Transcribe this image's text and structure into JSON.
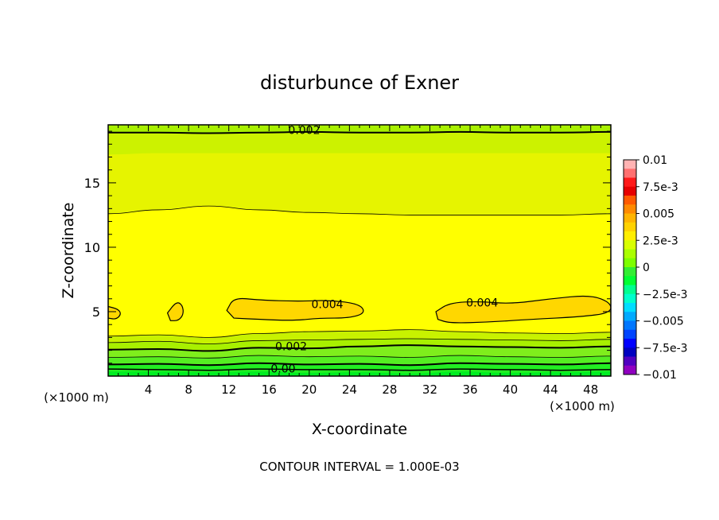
{
  "chart_data": {
    "type": "heatmap",
    "title": "disturbunce of Exner",
    "xlabel": "X-coordinate",
    "ylabel": "Z-coordinate",
    "x_unit": "(×1000 m)",
    "x_ticks": [
      4,
      8,
      12,
      16,
      20,
      24,
      28,
      32,
      36,
      40,
      44,
      48
    ],
    "y_ticks": [
      5,
      10,
      15
    ],
    "xlim": [
      0,
      50
    ],
    "ylim": [
      0,
      19.5
    ],
    "footer": "CONTOUR INTERVAL = 1.000E-03",
    "colorbar": {
      "labels": [
        "0.01",
        "7.5e-3",
        "0.005",
        "2.5e-3",
        "0",
        "−2.5e-3",
        "−0.005",
        "−7.5e-3",
        "−0.01"
      ],
      "values": [
        0.01,
        0.0075,
        0.005,
        0.0025,
        0,
        -0.0025,
        -0.005,
        -0.0075,
        -0.01
      ],
      "colors": [
        "#ffb3b3",
        "#ff7070",
        "#ff1a1a",
        "#e60000",
        "#ff5a00",
        "#ff8a00",
        "#ffb400",
        "#ffd200",
        "#ffee00",
        "#d8ff00",
        "#aaff00",
        "#7dff00",
        "#33ee33",
        "#00ff33",
        "#00ff90",
        "#00ffcc",
        "#00ddff",
        "#00aaff",
        "#0077ff",
        "#0044ff",
        "#0000ff",
        "#0000c0",
        "#5000c0",
        "#9000c0"
      ]
    },
    "contour_labels": [
      {
        "text": "0.002",
        "x": 19.5,
        "z": 19.1
      },
      {
        "text": "0.004",
        "x": 21.8,
        "z": 5.6
      },
      {
        "text": "0.004",
        "x": 37.2,
        "z": 5.7
      },
      {
        "text": "0.002",
        "x": 18.2,
        "z": 2.3
      },
      {
        "text": "0.00",
        "x": 17.4,
        "z": 0.6
      }
    ],
    "levels": [
      {
        "value": 0.0005,
        "color": "#00ee22",
        "line": false,
        "z": [
          0.35,
          0.35,
          0.3,
          0.35,
          0.25,
          0.3,
          0.2,
          0.35,
          0.25,
          0.3,
          0.35
        ]
      },
      {
        "value": 0.001,
        "color": "#22ee22",
        "line": true,
        "z": [
          0.9,
          0.95,
          0.85,
          1.0,
          0.9,
          0.95,
          0.85,
          1.0,
          0.95,
          0.9,
          1.0
        ]
      },
      {
        "value": 0.0015,
        "color": "#55ee22",
        "line": true,
        "z": [
          1.45,
          1.5,
          1.4,
          1.6,
          1.5,
          1.55,
          1.45,
          1.6,
          1.5,
          1.45,
          1.55
        ]
      },
      {
        "value": 0.002,
        "color": "#7fee1c",
        "line": true,
        "z": [
          2.05,
          2.1,
          1.95,
          2.2,
          2.15,
          2.3,
          2.4,
          2.3,
          2.25,
          2.2,
          2.3
        ]
      },
      {
        "value": 0.0025,
        "color": "#a8f000",
        "line": true,
        "z": [
          2.6,
          2.7,
          2.5,
          2.75,
          2.8,
          2.85,
          2.9,
          2.85,
          2.8,
          2.75,
          2.85
        ]
      },
      {
        "value": 0.003,
        "color": "#c8f200",
        "line": true,
        "z": [
          3.1,
          3.2,
          3.0,
          3.3,
          3.45,
          3.5,
          3.6,
          3.45,
          3.35,
          3.3,
          3.4
        ]
      },
      {
        "value": 0.0035,
        "color": "#ffff00",
        "line": false,
        "z": [
          8.8,
          7.3,
          10.0,
          9.6,
          9.3,
          9.1,
          9.0,
          9.0,
          9.0,
          9.0,
          9.0
        ]
      },
      {
        "value": 0.003,
        "color": "#e6f400",
        "line": false,
        "z": [
          12.6,
          12.9,
          13.2,
          12.9,
          12.7,
          12.6,
          12.5,
          12.5,
          12.5,
          12.5,
          12.5
        ]
      },
      {
        "value": 0.0025,
        "color": "#ccf200",
        "line": false,
        "z": [
          17.2,
          17.3,
          17.3,
          17.3,
          17.3,
          17.3,
          17.3,
          17.3,
          17.3,
          17.3,
          17.3
        ]
      },
      {
        "value": 0.002,
        "color": "#a8f000",
        "line": false,
        "z": [
          18.9,
          18.9,
          18.9,
          18.9,
          18.9,
          18.9,
          18.9,
          18.9,
          18.9,
          18.9,
          18.9
        ]
      },
      {
        "value": 0.0015,
        "color": "#90ee00",
        "line": false,
        "z": [
          19.5,
          19.5,
          19.5,
          19.5,
          19.5,
          19.5,
          19.5,
          19.5,
          19.5,
          19.5,
          19.5
        ]
      }
    ],
    "upper_contour_line": {
      "value": 0.002,
      "z": [
        18.9,
        18.9,
        18.85,
        18.9,
        18.95,
        18.9,
        18.9,
        18.95,
        18.9,
        18.9,
        18.95
      ]
    },
    "mid_contour_line": {
      "value": 0.003,
      "z": [
        12.6,
        12.9,
        13.2,
        12.9,
        12.7,
        12.6,
        12.5,
        12.5,
        12.5,
        12.5,
        12.6
      ]
    },
    "islands": [
      {
        "value": 0.004,
        "points": [
          [
            11.8,
            5.1
          ],
          [
            12.5,
            6.1
          ],
          [
            15,
            5.9
          ],
          [
            19,
            5.8
          ],
          [
            22,
            5.9
          ],
          [
            25,
            5.6
          ],
          [
            25.6,
            4.9
          ],
          [
            24,
            4.5
          ],
          [
            21,
            4.5
          ],
          [
            18.5,
            4.3
          ],
          [
            15,
            4.4
          ],
          [
            12.5,
            4.5
          ]
        ]
      },
      {
        "value": 0.004,
        "points": [
          [
            32.6,
            5.0
          ],
          [
            34,
            5.7
          ],
          [
            37,
            5.8
          ],
          [
            40,
            5.6
          ],
          [
            44,
            6.0
          ],
          [
            48,
            6.3
          ],
          [
            50,
            5.7
          ],
          [
            50,
            4.9
          ],
          [
            47,
            4.6
          ],
          [
            42,
            4.4
          ],
          [
            38,
            4.2
          ],
          [
            34,
            4.1
          ],
          [
            32.8,
            4.4
          ]
        ]
      },
      {
        "value": 0.004,
        "points": [
          [
            5.9,
            4.9
          ],
          [
            6.8,
            5.8
          ],
          [
            7.4,
            5.5
          ],
          [
            7.5,
            4.8
          ],
          [
            7.0,
            4.3
          ],
          [
            6.2,
            4.3
          ]
        ]
      },
      {
        "value": 0.004,
        "points": [
          [
            0,
            5.4
          ],
          [
            1.0,
            5.2
          ],
          [
            1.3,
            4.8
          ],
          [
            0.8,
            4.4
          ],
          [
            0,
            4.5
          ]
        ]
      }
    ]
  }
}
